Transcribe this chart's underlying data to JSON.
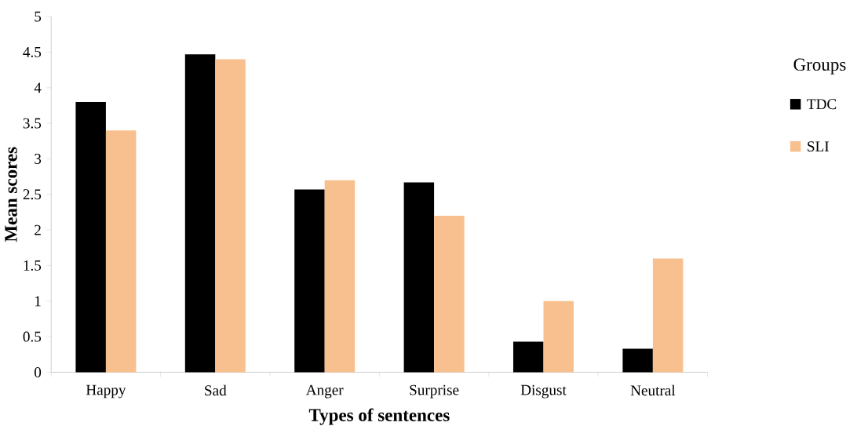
{
  "chart_data": {
    "type": "bar",
    "xlabel": "Types of sentences",
    "ylabel": "Mean scores",
    "legend_title": "Groups",
    "categories": [
      "Happy",
      "Sad",
      "Anger",
      "Surprise",
      "Disgust",
      "Neutral"
    ],
    "series": [
      {
        "name": "TDC",
        "color": "#000000",
        "values": [
          3.8,
          4.47,
          2.57,
          2.67,
          0.43,
          0.33
        ]
      },
      {
        "name": "SLI",
        "color": "#f9c08f",
        "values": [
          3.4,
          4.4,
          2.7,
          2.2,
          1.0,
          1.6
        ]
      }
    ],
    "ylim": [
      0,
      5
    ],
    "yticks": [
      0,
      0.5,
      1,
      1.5,
      2,
      2.5,
      3,
      3.5,
      4,
      4.5,
      5
    ],
    "grid": false,
    "legend": "right"
  }
}
